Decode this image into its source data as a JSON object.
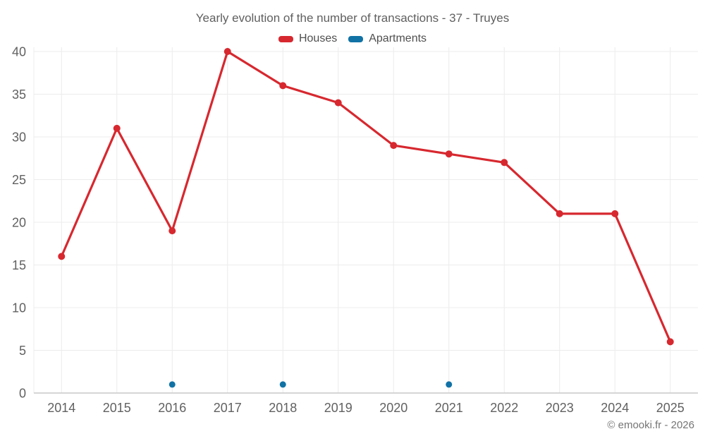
{
  "title": "Yearly evolution of the number of transactions - 37 - Truyes",
  "legend": {
    "items": [
      {
        "label": "Houses",
        "color": "#d7282f"
      },
      {
        "label": "Apartments",
        "color": "#1172a5"
      }
    ]
  },
  "footer": {
    "credit": "© emooki.fr - 2026"
  },
  "colors": {
    "background": "#ffffff",
    "grid": "#ececec",
    "axis": "#c9c9c9",
    "tick_text": "#616161",
    "title_text": "#606060",
    "houses": "#d7282f",
    "apartments": "#1172a5"
  },
  "chart_data": {
    "type": "line",
    "title": "Yearly evolution of the number of transactions - 37 - Truyes",
    "x": [
      2014,
      2015,
      2016,
      2017,
      2018,
      2019,
      2020,
      2021,
      2022,
      2023,
      2024,
      2025
    ],
    "series": [
      {
        "name": "Houses",
        "color": "#d7282f",
        "style": "line+points",
        "values": [
          16,
          31,
          19,
          40,
          36,
          34,
          29,
          28,
          27,
          21,
          21,
          6
        ]
      },
      {
        "name": "Apartments",
        "color": "#1172a5",
        "style": "points",
        "values": [
          null,
          null,
          1,
          null,
          1,
          null,
          null,
          1,
          null,
          null,
          null,
          null
        ]
      }
    ],
    "xlabel": "",
    "ylabel": "",
    "ylim": [
      0,
      40
    ],
    "yticks": [
      0,
      5,
      10,
      15,
      20,
      25,
      30,
      35,
      40
    ],
    "grid": true,
    "legend_position": "top"
  }
}
